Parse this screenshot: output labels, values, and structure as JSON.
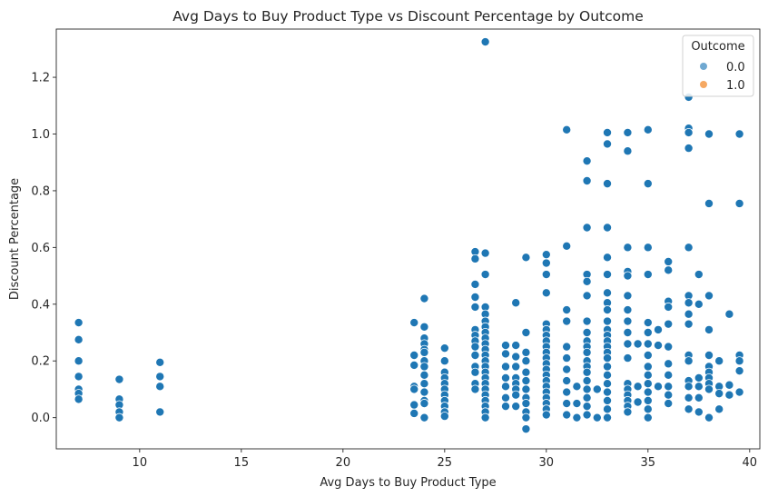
{
  "chart_data": {
    "type": "scatter",
    "title": "Avg Days to Buy Product Type vs Discount Percentage by Outcome",
    "xlabel": "Avg Days to Buy Product Type",
    "ylabel": "Discount Percentage",
    "xlim": [
      5.9,
      40.5
    ],
    "ylim": [
      -0.11,
      1.37
    ],
    "xticks": [
      10,
      15,
      20,
      25,
      30,
      35,
      40
    ],
    "yticks": [
      0.0,
      0.2,
      0.4,
      0.6,
      0.8,
      1.0,
      1.2
    ],
    "ytick_labels": [
      "0.0",
      "0.2",
      "0.4",
      "0.6",
      "0.8",
      "1.0",
      "1.2"
    ],
    "grid": false,
    "legend": {
      "title": "Outcome",
      "placement": "top-right",
      "entries": [
        {
          "label": "0.0",
          "color": "#6fa8d1"
        },
        {
          "label": "1.0",
          "color": "#f5a862"
        }
      ]
    },
    "series": [
      {
        "name": "0.0",
        "color": "#1f77b4",
        "points": [
          [
            7,
            0.335
          ],
          [
            7,
            0.275
          ],
          [
            7,
            0.2
          ],
          [
            7,
            0.145
          ],
          [
            7,
            0.1
          ],
          [
            7,
            0.085
          ],
          [
            7,
            0.065
          ],
          [
            9,
            0.135
          ],
          [
            9,
            0.065
          ],
          [
            9,
            0.045
          ],
          [
            9,
            0.02
          ],
          [
            9,
            0.0
          ],
          [
            11,
            0.195
          ],
          [
            11,
            0.145
          ],
          [
            11,
            0.11
          ],
          [
            11,
            0.02
          ],
          [
            23.5,
            0.335
          ],
          [
            23.5,
            0.22
          ],
          [
            23.5,
            0.185
          ],
          [
            23.5,
            0.11
          ],
          [
            23.5,
            0.1
          ],
          [
            23.5,
            0.045
          ],
          [
            23.5,
            0.015
          ],
          [
            24,
            0.42
          ],
          [
            24,
            0.32
          ],
          [
            24,
            0.28
          ],
          [
            24,
            0.26
          ],
          [
            24,
            0.24
          ],
          [
            24,
            0.23
          ],
          [
            24,
            0.2
          ],
          [
            24,
            0.18
          ],
          [
            24,
            0.15
          ],
          [
            24,
            0.12
          ],
          [
            24,
            0.09
          ],
          [
            24,
            0.06
          ],
          [
            24,
            0.05
          ],
          [
            24,
            0.0
          ],
          [
            25,
            0.245
          ],
          [
            25,
            0.2
          ],
          [
            25,
            0.16
          ],
          [
            25,
            0.14
          ],
          [
            25,
            0.12
          ],
          [
            25,
            0.1
          ],
          [
            25,
            0.08
          ],
          [
            25,
            0.06
          ],
          [
            25,
            0.04
          ],
          [
            25,
            0.02
          ],
          [
            25,
            0.005
          ],
          [
            26.5,
            0.585
          ],
          [
            26.5,
            0.56
          ],
          [
            26.5,
            0.47
          ],
          [
            26.5,
            0.425
          ],
          [
            26.5,
            0.39
          ],
          [
            26.5,
            0.31
          ],
          [
            26.5,
            0.29
          ],
          [
            26.5,
            0.27
          ],
          [
            26.5,
            0.25
          ],
          [
            26.5,
            0.22
          ],
          [
            26.5,
            0.18
          ],
          [
            26.5,
            0.16
          ],
          [
            26.5,
            0.12
          ],
          [
            26.5,
            0.1
          ],
          [
            27,
            1.325
          ],
          [
            27,
            0.58
          ],
          [
            27,
            0.505
          ],
          [
            27,
            0.39
          ],
          [
            27,
            0.365
          ],
          [
            27,
            0.34
          ],
          [
            27,
            0.32
          ],
          [
            27,
            0.3
          ],
          [
            27,
            0.28
          ],
          [
            27,
            0.26
          ],
          [
            27,
            0.24
          ],
          [
            27,
            0.22
          ],
          [
            27,
            0.2
          ],
          [
            27,
            0.18
          ],
          [
            27,
            0.16
          ],
          [
            27,
            0.14
          ],
          [
            27,
            0.12
          ],
          [
            27,
            0.1
          ],
          [
            27,
            0.08
          ],
          [
            27,
            0.06
          ],
          [
            27,
            0.04
          ],
          [
            27,
            0.02
          ],
          [
            27,
            0.0
          ],
          [
            28,
            0.255
          ],
          [
            28,
            0.225
          ],
          [
            28,
            0.18
          ],
          [
            28,
            0.14
          ],
          [
            28,
            0.11
          ],
          [
            28,
            0.07
          ],
          [
            28,
            0.04
          ],
          [
            28.5,
            0.405
          ],
          [
            28.5,
            0.255
          ],
          [
            28.5,
            0.215
          ],
          [
            28.5,
            0.18
          ],
          [
            28.5,
            0.14
          ],
          [
            28.5,
            0.12
          ],
          [
            28.5,
            0.1
          ],
          [
            28.5,
            0.08
          ],
          [
            28.5,
            0.04
          ],
          [
            29,
            0.565
          ],
          [
            29,
            0.3
          ],
          [
            29,
            0.23
          ],
          [
            29,
            0.2
          ],
          [
            29,
            0.16
          ],
          [
            29,
            0.13
          ],
          [
            29,
            0.1
          ],
          [
            29,
            0.07
          ],
          [
            29,
            0.05
          ],
          [
            29,
            0.02
          ],
          [
            29,
            0.0
          ],
          [
            29,
            -0.04
          ],
          [
            30,
            0.575
          ],
          [
            30,
            0.545
          ],
          [
            30,
            0.505
          ],
          [
            30,
            0.44
          ],
          [
            30,
            0.33
          ],
          [
            30,
            0.31
          ],
          [
            30,
            0.29
          ],
          [
            30,
            0.27
          ],
          [
            30,
            0.25
          ],
          [
            30,
            0.23
          ],
          [
            30,
            0.21
          ],
          [
            30,
            0.19
          ],
          [
            30,
            0.17
          ],
          [
            30,
            0.15
          ],
          [
            30,
            0.13
          ],
          [
            30,
            0.11
          ],
          [
            30,
            0.09
          ],
          [
            30,
            0.07
          ],
          [
            30,
            0.05
          ],
          [
            30,
            0.03
          ],
          [
            30,
            0.01
          ],
          [
            31,
            1.015
          ],
          [
            31,
            0.605
          ],
          [
            31,
            0.38
          ],
          [
            31,
            0.34
          ],
          [
            31,
            0.25
          ],
          [
            31,
            0.21
          ],
          [
            31,
            0.17
          ],
          [
            31,
            0.13
          ],
          [
            31,
            0.09
          ],
          [
            31,
            0.05
          ],
          [
            31,
            0.01
          ],
          [
            31.5,
            0.11
          ],
          [
            31.5,
            0.05
          ],
          [
            31.5,
            0.0
          ],
          [
            32,
            0.905
          ],
          [
            32,
            0.835
          ],
          [
            32,
            0.67
          ],
          [
            32,
            0.505
          ],
          [
            32,
            0.48
          ],
          [
            32,
            0.43
          ],
          [
            32,
            0.34
          ],
          [
            32,
            0.3
          ],
          [
            32,
            0.27
          ],
          [
            32,
            0.25
          ],
          [
            32,
            0.23
          ],
          [
            32,
            0.2
          ],
          [
            32,
            0.18
          ],
          [
            32,
            0.16
          ],
          [
            32,
            0.13
          ],
          [
            32,
            0.1
          ],
          [
            32,
            0.07
          ],
          [
            32,
            0.04
          ],
          [
            32,
            0.01
          ],
          [
            32.5,
            0.1
          ],
          [
            32.5,
            0.0
          ],
          [
            33,
            1.005
          ],
          [
            33,
            0.965
          ],
          [
            33,
            0.825
          ],
          [
            33,
            0.67
          ],
          [
            33,
            0.565
          ],
          [
            33,
            0.505
          ],
          [
            33,
            0.44
          ],
          [
            33,
            0.405
          ],
          [
            33,
            0.38
          ],
          [
            33,
            0.34
          ],
          [
            33,
            0.31
          ],
          [
            33,
            0.29
          ],
          [
            33,
            0.27
          ],
          [
            33,
            0.25
          ],
          [
            33,
            0.23
          ],
          [
            33,
            0.21
          ],
          [
            33,
            0.18
          ],
          [
            33,
            0.15
          ],
          [
            33,
            0.12
          ],
          [
            33,
            0.09
          ],
          [
            33,
            0.06
          ],
          [
            33,
            0.03
          ],
          [
            33,
            0.0
          ],
          [
            34,
            1.005
          ],
          [
            34,
            0.94
          ],
          [
            34,
            0.6
          ],
          [
            34,
            0.515
          ],
          [
            34,
            0.5
          ],
          [
            34,
            0.43
          ],
          [
            34,
            0.38
          ],
          [
            34,
            0.34
          ],
          [
            34,
            0.3
          ],
          [
            34,
            0.26
          ],
          [
            34,
            0.21
          ],
          [
            34,
            0.12
          ],
          [
            34,
            0.1
          ],
          [
            34,
            0.08
          ],
          [
            34,
            0.06
          ],
          [
            34,
            0.04
          ],
          [
            34,
            0.02
          ],
          [
            34.5,
            0.26
          ],
          [
            34.5,
            0.11
          ],
          [
            34.5,
            0.055
          ],
          [
            35,
            1.015
          ],
          [
            35,
            0.825
          ],
          [
            35,
            0.6
          ],
          [
            35,
            0.505
          ],
          [
            35,
            0.335
          ],
          [
            35,
            0.3
          ],
          [
            35,
            0.26
          ],
          [
            35,
            0.22
          ],
          [
            35,
            0.18
          ],
          [
            35,
            0.15
          ],
          [
            35,
            0.12
          ],
          [
            35,
            0.09
          ],
          [
            35,
            0.06
          ],
          [
            35,
            0.03
          ],
          [
            35,
            0.0
          ],
          [
            35.5,
            0.31
          ],
          [
            35.5,
            0.255
          ],
          [
            35.5,
            0.11
          ],
          [
            36,
            0.55
          ],
          [
            36,
            0.52
          ],
          [
            36,
            0.41
          ],
          [
            36,
            0.39
          ],
          [
            36,
            0.33
          ],
          [
            36,
            0.25
          ],
          [
            36,
            0.19
          ],
          [
            36,
            0.15
          ],
          [
            36,
            0.11
          ],
          [
            36,
            0.08
          ],
          [
            36,
            0.05
          ],
          [
            37,
            1.13
          ],
          [
            37,
            1.02
          ],
          [
            37,
            1.005
          ],
          [
            37,
            0.95
          ],
          [
            37,
            0.6
          ],
          [
            37,
            0.43
          ],
          [
            37,
            0.405
          ],
          [
            37,
            0.365
          ],
          [
            37,
            0.33
          ],
          [
            37,
            0.22
          ],
          [
            37,
            0.2
          ],
          [
            37,
            0.13
          ],
          [
            37,
            0.11
          ],
          [
            37,
            0.07
          ],
          [
            37,
            0.03
          ],
          [
            37.5,
            0.505
          ],
          [
            37.5,
            0.4
          ],
          [
            37.5,
            0.14
          ],
          [
            37.5,
            0.11
          ],
          [
            37.5,
            0.07
          ],
          [
            37.5,
            0.02
          ],
          [
            38,
            1.0
          ],
          [
            38,
            0.755
          ],
          [
            38,
            0.43
          ],
          [
            38,
            0.31
          ],
          [
            38,
            0.22
          ],
          [
            38,
            0.18
          ],
          [
            38,
            0.16
          ],
          [
            38,
            0.14
          ],
          [
            38,
            0.12
          ],
          [
            38,
            0.1
          ],
          [
            38,
            0.0
          ],
          [
            38.5,
            0.2
          ],
          [
            38.5,
            0.11
          ],
          [
            38.5,
            0.085
          ],
          [
            38.5,
            0.03
          ],
          [
            39,
            0.365
          ],
          [
            39,
            0.115
          ],
          [
            39,
            0.08
          ],
          [
            39.5,
            1.0
          ],
          [
            39.5,
            0.755
          ],
          [
            39.5,
            0.22
          ],
          [
            39.5,
            0.2
          ],
          [
            39.5,
            0.165
          ],
          [
            39.5,
            0.09
          ]
        ]
      },
      {
        "name": "1.0",
        "color": "#ff7f0e",
        "points": []
      }
    ]
  }
}
